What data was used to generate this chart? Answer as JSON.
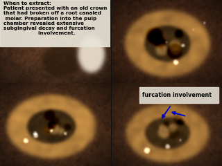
{
  "background_color": "#111111",
  "divider_color": "#111111",
  "panel_colors": {
    "p0_bg": [
      120,
      75,
      50
    ],
    "p1_bg": [
      110,
      65,
      40
    ],
    "p2_bg": [
      115,
      68,
      42
    ],
    "p3_bg": [
      112,
      66,
      41
    ]
  },
  "text_lines": [
    "When to extract:",
    "Patient presented with an old crown",
    "that had broken off a root canaled",
    " molar. Preparation into the pulp",
    "chamber revealed extensive",
    "subgingival decay and furcation",
    "                    involvement."
  ],
  "text_fontsize": 5.2,
  "annotation_text": "furcation involvement",
  "annotation_box_color": "#ddd8cc",
  "annotation_text_color": "#000000",
  "arrow_color": "#0000cc",
  "text_bg_color": "#e8e4d8"
}
